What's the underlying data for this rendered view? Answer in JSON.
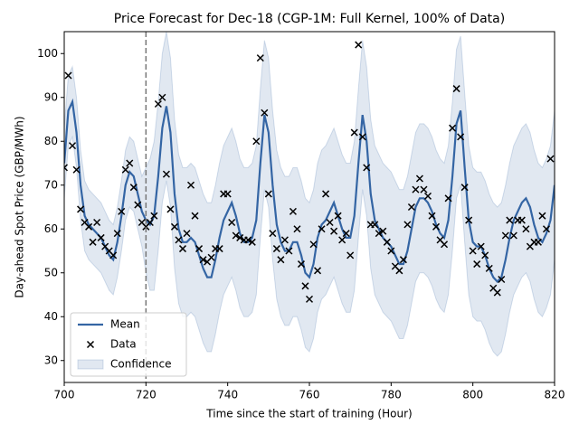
{
  "chart_data": {
    "type": "line",
    "title": "Price Forecast for Dec-18 (CGP-1M: Full Kernel, 100% of Data)",
    "xlabel": "Time since the start of training (Hour)",
    "ylabel": "Day-ahead Spot Price (GBP/MWh)",
    "xlim": [
      700,
      820
    ],
    "xticks": [
      700,
      720,
      740,
      760,
      780,
      800,
      820
    ],
    "ylim": [
      25,
      105
    ],
    "yticks": [
      30,
      40,
      50,
      60,
      70,
      80,
      90,
      100
    ],
    "vlines": [
      720
    ],
    "vline_color": "#777777",
    "legend": "lower left",
    "series": [
      {
        "name": "Mean",
        "type": "line",
        "color": "#3465a4",
        "x": [
          700,
          701,
          702,
          703,
          704,
          705,
          706,
          707,
          708,
          709,
          710,
          711,
          712,
          713,
          714,
          715,
          716,
          717,
          718,
          719,
          720,
          721,
          722,
          723,
          724,
          725,
          726,
          727,
          728,
          729,
          730,
          731,
          732,
          733,
          734,
          735,
          736,
          737,
          738,
          739,
          740,
          741,
          742,
          743,
          744,
          745,
          746,
          747,
          748,
          749,
          750,
          751,
          752,
          753,
          754,
          755,
          756,
          757,
          758,
          759,
          760,
          761,
          762,
          763,
          764,
          765,
          766,
          767,
          768,
          769,
          770,
          771,
          772,
          773,
          774,
          775,
          776,
          777,
          778,
          779,
          780,
          781,
          782,
          783,
          784,
          785,
          786,
          787,
          788,
          789,
          790,
          791,
          792,
          793,
          794,
          795,
          796,
          797,
          798,
          799,
          800,
          801,
          802,
          803,
          804,
          805,
          806,
          807,
          808,
          809,
          810,
          811,
          812,
          813,
          814,
          815,
          816,
          817,
          818,
          819,
          820
        ],
        "values": [
          75,
          87,
          89,
          82,
          70,
          63,
          61,
          60,
          59,
          58,
          56,
          54,
          53,
          57,
          63,
          70,
          73,
          72,
          68,
          64,
          62,
          61,
          63,
          72,
          83,
          88,
          82,
          68,
          60,
          57,
          57,
          58,
          57,
          54,
          51,
          49,
          49,
          53,
          58,
          62,
          64,
          66,
          63,
          59,
          57,
          57,
          58,
          62,
          75,
          86,
          82,
          70,
          61,
          57,
          55,
          55,
          57,
          57,
          54,
          50,
          49,
          52,
          58,
          61,
          62,
          64,
          66,
          63,
          60,
          58,
          58,
          63,
          75,
          86,
          80,
          68,
          62,
          60,
          58,
          57,
          56,
          54,
          52,
          52,
          55,
          60,
          65,
          67,
          67,
          66,
          64,
          61,
          59,
          58,
          62,
          72,
          84,
          87,
          74,
          62,
          57,
          56,
          56,
          54,
          51,
          49,
          48,
          49,
          53,
          58,
          62,
          64,
          66,
          67,
          65,
          61,
          58,
          57,
          59,
          62,
          70
        ]
      },
      {
        "name": "Data",
        "type": "scatter",
        "color": "#000000",
        "x": [
          700,
          701,
          702,
          703,
          704,
          705,
          706,
          707,
          708,
          709,
          710,
          711,
          712,
          713,
          714,
          715,
          716,
          717,
          718,
          719,
          720,
          721,
          722,
          723,
          724,
          725,
          726,
          727,
          728,
          729,
          730,
          731,
          732,
          733,
          734,
          735,
          736,
          737,
          738,
          739,
          740,
          741,
          742,
          743,
          744,
          745,
          746,
          747,
          748,
          749,
          750,
          751,
          752,
          753,
          754,
          755,
          756,
          757,
          758,
          759,
          760,
          761,
          762,
          763,
          764,
          765,
          766,
          767,
          768,
          769,
          770,
          771,
          772,
          773,
          774,
          775,
          776,
          777,
          778,
          779,
          780,
          781,
          782,
          783,
          784,
          785,
          786,
          787,
          788,
          789,
          790,
          791,
          792,
          793,
          794,
          795,
          796,
          797,
          798,
          799,
          800,
          801,
          802,
          803,
          804,
          805,
          806,
          807,
          808,
          809,
          810,
          811,
          812,
          813,
          814,
          815,
          816,
          817,
          818,
          819
        ],
        "values": [
          74,
          95,
          79,
          73.5,
          64.5,
          61.5,
          60.5,
          57,
          61.5,
          58,
          56,
          55,
          54,
          59,
          64,
          73.5,
          75,
          69.5,
          65.5,
          61.5,
          60.5,
          61.5,
          63,
          88.5,
          90,
          72.5,
          64.5,
          60.5,
          57.5,
          55.5,
          59,
          70,
          63,
          55.5,
          53,
          52.5,
          53.5,
          55.5,
          55.5,
          68,
          68,
          61.5,
          58.5,
          58,
          57.5,
          57.5,
          57,
          80,
          99,
          86.5,
          68,
          59,
          55.5,
          53,
          57.5,
          55,
          64,
          60,
          52,
          47,
          44,
          56.5,
          50.5,
          60,
          68,
          61.5,
          59.5,
          63,
          57.5,
          59,
          54,
          82,
          102,
          81,
          74,
          61,
          61,
          59,
          59.5,
          57,
          55,
          51.5,
          50.5,
          53,
          61,
          65,
          69,
          71.5,
          69,
          67.5,
          63,
          60.5,
          57.5,
          56.5,
          67,
          83,
          92,
          81,
          69.5,
          62,
          55,
          52,
          56,
          54,
          51,
          46.5,
          45.5,
          48.5,
          58.5,
          62,
          58.5,
          62,
          62,
          60,
          56,
          57,
          57,
          63,
          60,
          76
        ]
      },
      {
        "name": "Confidence",
        "type": "band",
        "color": "#3465a4",
        "x": [
          700,
          701,
          702,
          703,
          704,
          705,
          706,
          707,
          708,
          709,
          710,
          711,
          712,
          713,
          714,
          715,
          716,
          717,
          718,
          719,
          720,
          721,
          722,
          723,
          724,
          725,
          726,
          727,
          728,
          729,
          730,
          731,
          732,
          733,
          734,
          735,
          736,
          737,
          738,
          739,
          740,
          741,
          742,
          743,
          744,
          745,
          746,
          747,
          748,
          749,
          750,
          751,
          752,
          753,
          754,
          755,
          756,
          757,
          758,
          759,
          760,
          761,
          762,
          763,
          764,
          765,
          766,
          767,
          768,
          769,
          770,
          771,
          772,
          773,
          774,
          775,
          776,
          777,
          778,
          779,
          780,
          781,
          782,
          783,
          784,
          785,
          786,
          787,
          788,
          789,
          790,
          791,
          792,
          793,
          794,
          795,
          796,
          797,
          798,
          799,
          800,
          801,
          802,
          803,
          804,
          805,
          806,
          807,
          808,
          809,
          810,
          811,
          812,
          813,
          814,
          815,
          816,
          817,
          818,
          819,
          820
        ],
        "lower": [
          67,
          79,
          81,
          74,
          62,
          55,
          53,
          52,
          51,
          50,
          48,
          46,
          45,
          49,
          55,
          62,
          65,
          64,
          60,
          56,
          50,
          46,
          46,
          55,
          66,
          71,
          65,
          51,
          43,
          40,
          40,
          41,
          40,
          37,
          34,
          32,
          32,
          36,
          41,
          45,
          47,
          49,
          46,
          42,
          40,
          40,
          41,
          45,
          58,
          69,
          65,
          53,
          44,
          40,
          38,
          38,
          40,
          40,
          37,
          33,
          32,
          35,
          41,
          44,
          45,
          47,
          49,
          46,
          43,
          41,
          41,
          46,
          58,
          69,
          63,
          51,
          45,
          43,
          41,
          40,
          39,
          37,
          35,
          35,
          38,
          43,
          48,
          50,
          50,
          49,
          47,
          44,
          42,
          41,
          45,
          55,
          67,
          70,
          57,
          45,
          40,
          39,
          39,
          37,
          34,
          32,
          31,
          32,
          36,
          41,
          45,
          47,
          49,
          50,
          48,
          44,
          41,
          40,
          42,
          45,
          53
        ],
        "upper": [
          83,
          95,
          97,
          90,
          78,
          71,
          69,
          68,
          67,
          66,
          64,
          62,
          61,
          65,
          71,
          78,
          81,
          80,
          76,
          72,
          74,
          76,
          80,
          89,
          100,
          105,
          99,
          85,
          77,
          74,
          74,
          75,
          74,
          71,
          68,
          66,
          66,
          70,
          75,
          79,
          81,
          83,
          80,
          76,
          74,
          74,
          75,
          79,
          92,
          103,
          99,
          87,
          78,
          74,
          72,
          72,
          74,
          74,
          71,
          67,
          66,
          69,
          75,
          78,
          79,
          81,
          83,
          80,
          77,
          75,
          75,
          80,
          92,
          103,
          97,
          85,
          79,
          77,
          75,
          74,
          73,
          71,
          69,
          69,
          72,
          77,
          82,
          84,
          84,
          83,
          81,
          78,
          76,
          75,
          79,
          89,
          101,
          104,
          91,
          79,
          74,
          73,
          73,
          71,
          68,
          66,
          65,
          66,
          70,
          75,
          79,
          81,
          83,
          84,
          82,
          78,
          75,
          74,
          76,
          79,
          87
        ]
      }
    ]
  }
}
